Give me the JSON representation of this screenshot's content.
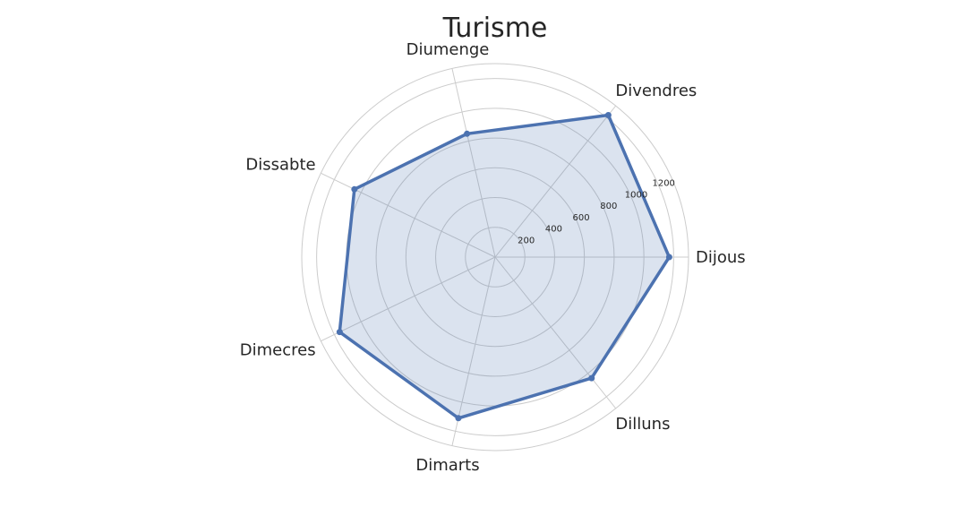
{
  "chart_data": {
    "type": "radar",
    "title": "Turisme",
    "categories": [
      "Dijous",
      "Divendres",
      "Diumenge",
      "Dissabte",
      "Dimecres",
      "Dimarts",
      "Dilluns"
    ],
    "series": [
      {
        "values": [
          1170,
          1220,
          850,
          1050,
          1160,
          1110,
          1040
        ],
        "color": "#4c72b0"
      }
    ],
    "rticks": [
      200,
      400,
      600,
      800,
      1000,
      1200
    ],
    "rlim": [
      0,
      1300
    ],
    "grid": true
  }
}
